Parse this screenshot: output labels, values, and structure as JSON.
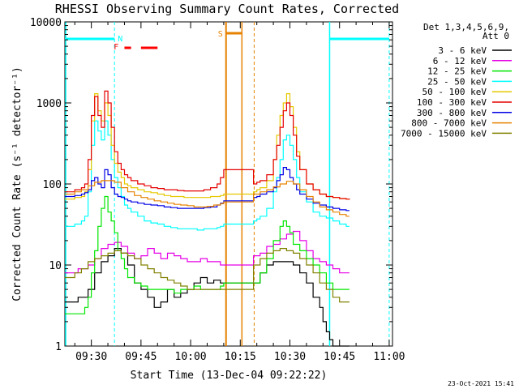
{
  "chart_data": {
    "type": "line",
    "title": "RHESSI Observing Summary Count Rates, Corrected",
    "xlabel": "Start Time (13-Dec-04 09:22:22)",
    "ylabel": "Corrected Count Rate (s⁻¹ detector⁻¹)",
    "y_scale": "log",
    "ylim": [
      1,
      10000
    ],
    "xlim_minutes_from_0900": [
      22,
      121
    ],
    "xtick_labels": [
      "09:30",
      "09:45",
      "10:00",
      "10:15",
      "10:30",
      "10:45",
      "11:00"
    ],
    "xtick_minutes_from_0900": [
      30,
      45,
      60,
      75,
      90,
      105,
      120
    ],
    "ytick_labels": [
      "1",
      "10",
      "100",
      "1000",
      "10000"
    ],
    "ytick_values": [
      1,
      10,
      100,
      1000,
      10000
    ],
    "legend_header": [
      "Det 1,3,4,5,6,9,",
      "Att 0"
    ],
    "legend_position": "right",
    "grid": false,
    "gap_minutes_from_0900": [
      70.7,
      79.2
    ],
    "series": [
      {
        "name": "3 - 6 keV",
        "color": "#000000",
        "x": [
          22,
          26,
          29,
          31,
          33,
          35,
          37,
          39,
          41,
          43,
          45,
          47,
          49,
          51,
          53,
          55,
          57,
          59,
          61,
          63,
          65,
          67,
          69,
          70,
          79,
          81,
          83,
          85,
          87,
          89,
          91,
          93,
          95,
          97,
          99,
          100,
          101,
          102,
          103,
          105,
          107,
          108
        ],
        "y": [
          3.5,
          4,
          5,
          8,
          11,
          13,
          16,
          14,
          10,
          6,
          5,
          4,
          3,
          3.5,
          5,
          4,
          4.5,
          5,
          6,
          7,
          6,
          6.5,
          6,
          6,
          6,
          8,
          10,
          11,
          11,
          11,
          10,
          8,
          6,
          4,
          3,
          2,
          1.5,
          1.2,
          1,
          1,
          1,
          1
        ]
      },
      {
        "name": "6 - 12 keV",
        "color": "#e600e6",
        "x": [
          22,
          26,
          29,
          31,
          33,
          35,
          37,
          39,
          41,
          43,
          45,
          47,
          49,
          51,
          53,
          55,
          57,
          59,
          61,
          63,
          65,
          67,
          69,
          70,
          79,
          81,
          83,
          85,
          87,
          89,
          91,
          93,
          95,
          97,
          99,
          101,
          103,
          105,
          107,
          108
        ],
        "y": [
          8,
          9,
          10,
          12,
          16,
          18,
          19,
          17,
          14,
          12,
          13,
          16,
          14,
          12,
          14,
          13,
          12,
          11,
          11,
          12,
          11,
          11,
          10,
          10,
          13,
          14,
          17,
          18,
          21,
          24,
          26,
          20,
          15,
          12,
          11,
          10,
          9,
          8,
          8,
          8
        ]
      },
      {
        "name": "12 - 25 keV",
        "color": "#00e600",
        "x": [
          22,
          26,
          28,
          29,
          30,
          31,
          32,
          33,
          34,
          35,
          36,
          37,
          38,
          39,
          40,
          41,
          43,
          45,
          47,
          49,
          51,
          53,
          55,
          57,
          59,
          61,
          63,
          65,
          67,
          69,
          70,
          79,
          81,
          83,
          85,
          87,
          88,
          89,
          90,
          91,
          93,
          95,
          97,
          99,
          101,
          103,
          105,
          107,
          108
        ],
        "y": [
          2.5,
          2.5,
          3,
          4,
          8,
          15,
          30,
          50,
          70,
          45,
          35,
          25,
          15,
          12,
          9,
          7,
          6,
          5.5,
          5,
          5,
          5,
          5,
          4.5,
          5,
          5,
          5.5,
          5,
          5,
          5,
          5.5,
          6,
          6,
          8,
          12,
          20,
          30,
          35,
          30,
          25,
          18,
          15,
          12,
          10,
          8,
          6,
          5,
          5,
          5,
          5
        ]
      },
      {
        "name": "25 - 50 keV",
        "color": "#00ffff",
        "x": [
          22,
          25,
          27,
          28,
          29,
          30,
          31,
          32,
          33,
          34,
          35,
          36,
          37,
          38,
          39,
          40,
          41,
          42,
          44,
          46,
          48,
          50,
          52,
          54,
          56,
          58,
          60,
          62,
          64,
          66,
          68,
          69,
          70,
          79,
          80,
          81,
          83,
          85,
          86,
          87,
          88,
          89,
          90,
          91,
          92,
          93,
          95,
          97,
          99,
          101,
          103,
          105,
          107,
          108
        ],
        "y": [
          30,
          32,
          35,
          40,
          80,
          300,
          600,
          450,
          350,
          600,
          400,
          200,
          120,
          90,
          70,
          55,
          50,
          45,
          40,
          35,
          33,
          32,
          30,
          29,
          28,
          28,
          28,
          27,
          28,
          28,
          29,
          30,
          32,
          35,
          37,
          40,
          50,
          80,
          120,
          200,
          350,
          400,
          300,
          200,
          120,
          80,
          60,
          45,
          40,
          38,
          35,
          32,
          30,
          30
        ]
      },
      {
        "name": "50 - 100 keV",
        "color": "#e6c800",
        "x": [
          22,
          25,
          27,
          28,
          29,
          30,
          31,
          32,
          33,
          34,
          35,
          36,
          37,
          38,
          39,
          40,
          41,
          42,
          44,
          46,
          48,
          50,
          52,
          54,
          56,
          58,
          60,
          62,
          64,
          66,
          68,
          69,
          70,
          79,
          80,
          81,
          83,
          85,
          86,
          87,
          88,
          89,
          90,
          91,
          92,
          93,
          95,
          97,
          99,
          101,
          103,
          105,
          107,
          108
        ],
        "y": [
          65,
          68,
          70,
          80,
          150,
          600,
          1300,
          800,
          600,
          1000,
          700,
          300,
          180,
          140,
          120,
          100,
          95,
          90,
          85,
          80,
          78,
          75,
          72,
          70,
          70,
          68,
          68,
          68,
          68,
          70,
          70,
          72,
          75,
          80,
          85,
          90,
          110,
          200,
          400,
          700,
          1000,
          1300,
          900,
          500,
          250,
          150,
          100,
          85,
          75,
          70,
          68,
          66,
          65,
          65
        ]
      },
      {
        "name": "100 - 300 keV",
        "color": "#e60000",
        "x": [
          22,
          25,
          27,
          28,
          29,
          30,
          31,
          32,
          33,
          34,
          35,
          36,
          37,
          38,
          39,
          40,
          41,
          42,
          44,
          46,
          48,
          50,
          52,
          54,
          56,
          58,
          60,
          62,
          64,
          66,
          68,
          69,
          70,
          79,
          80,
          81,
          83,
          85,
          86,
          87,
          88,
          89,
          90,
          91,
          92,
          93,
          95,
          97,
          99,
          101,
          103,
          105,
          107,
          108
        ],
        "y": [
          80,
          85,
          90,
          100,
          200,
          700,
          1200,
          700,
          500,
          1400,
          1000,
          500,
          250,
          180,
          150,
          130,
          120,
          110,
          100,
          95,
          90,
          88,
          85,
          85,
          83,
          82,
          82,
          82,
          85,
          90,
          100,
          120,
          150,
          100,
          105,
          110,
          130,
          200,
          300,
          500,
          800,
          1000,
          700,
          400,
          220,
          150,
          100,
          85,
          75,
          70,
          68,
          66,
          65,
          66
        ]
      },
      {
        "name": "300 - 800 keV",
        "color": "#0000e6",
        "x": [
          22,
          25,
          27,
          28,
          29,
          30,
          31,
          32,
          33,
          34,
          35,
          36,
          37,
          38,
          39,
          40,
          41,
          42,
          44,
          46,
          48,
          50,
          52,
          54,
          56,
          58,
          60,
          62,
          64,
          66,
          68,
          69,
          70,
          79,
          80,
          81,
          83,
          85,
          86,
          87,
          88,
          89,
          90,
          91,
          92,
          93,
          95,
          97,
          99,
          101,
          103,
          105,
          107,
          108
        ],
        "y": [
          70,
          72,
          75,
          78,
          85,
          110,
          120,
          100,
          90,
          150,
          130,
          90,
          75,
          70,
          68,
          65,
          62,
          60,
          58,
          56,
          55,
          54,
          52,
          51,
          50,
          50,
          50,
          50,
          51,
          52,
          55,
          58,
          62,
          68,
          70,
          75,
          80,
          90,
          110,
          130,
          160,
          150,
          120,
          100,
          85,
          75,
          65,
          58,
          55,
          52,
          50,
          48,
          47,
          47
        ]
      },
      {
        "name": "800 - 7000 keV",
        "color": "#e68200",
        "x": [
          22,
          25,
          27,
          29,
          31,
          33,
          35,
          37,
          39,
          41,
          43,
          45,
          47,
          49,
          51,
          53,
          55,
          57,
          59,
          61,
          63,
          65,
          67,
          69,
          70,
          79,
          81,
          83,
          85,
          87,
          89,
          91,
          93,
          95,
          97,
          99,
          101,
          103,
          105,
          107,
          108
        ],
        "y": [
          75,
          80,
          85,
          95,
          105,
          110,
          110,
          105,
          90,
          80,
          72,
          68,
          65,
          62,
          60,
          58,
          56,
          55,
          54,
          52,
          52,
          53,
          55,
          57,
          60,
          75,
          80,
          85,
          92,
          100,
          108,
          100,
          85,
          70,
          60,
          52,
          48,
          45,
          42,
          40,
          40
        ]
      },
      {
        "name": "7000 - 15000 keV",
        "color": "#808000",
        "x": [
          22,
          25,
          27,
          29,
          31,
          33,
          35,
          37,
          39,
          41,
          43,
          45,
          47,
          49,
          51,
          53,
          55,
          57,
          59,
          61,
          63,
          65,
          67,
          69,
          70,
          79,
          81,
          83,
          85,
          87,
          89,
          91,
          93,
          95,
          97,
          99,
          101,
          103,
          105,
          107,
          108
        ],
        "y": [
          7,
          8,
          9,
          11,
          12,
          13,
          14,
          15,
          14,
          13,
          12,
          10,
          9,
          8,
          7,
          6.5,
          6,
          5.5,
          5,
          5,
          5,
          5,
          5,
          5,
          5,
          10,
          12,
          14,
          15,
          16,
          15,
          14,
          12,
          10,
          8,
          6,
          5,
          4,
          3.5,
          3.5,
          3.5
        ]
      }
    ],
    "annotations": [
      {
        "label": "N",
        "color": "#00ffff",
        "x_minutes_from_0900": 37
      },
      {
        "label": "F",
        "color": "#ff0000",
        "x_minutes_from_0900": 37
      },
      {
        "label": "S",
        "color": "#e68200",
        "x_minutes_from_0900": 70.7
      }
    ],
    "timestamp": "23-Oct-2021 15:41"
  }
}
